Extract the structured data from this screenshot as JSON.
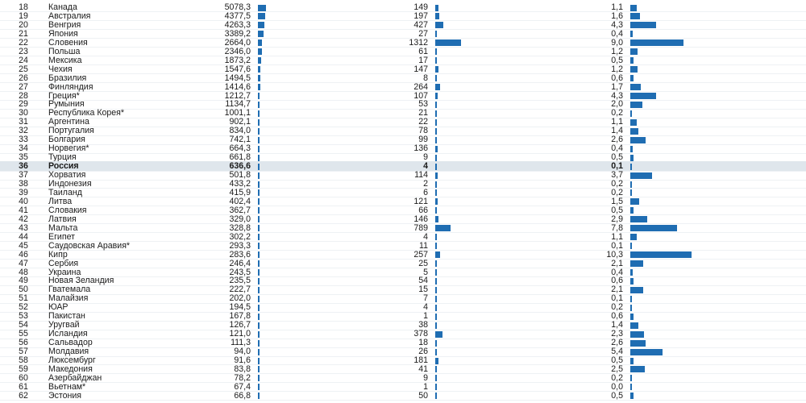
{
  "accent_color": "#1f6db2",
  "highlight_color": "#dfe6ec",
  "chart_data": {
    "type": "table",
    "highlighted_row": "Россия",
    "rows": [
      {
        "rank": "18",
        "country": "Канада",
        "v1": "5078,3",
        "v2": "149",
        "v3": "1,1",
        "n1": 5078.3,
        "n2": 149,
        "n3": 1.1
      },
      {
        "rank": "19",
        "country": "Австралия",
        "v1": "4377,5",
        "v2": "197",
        "v3": "1,6",
        "n1": 4377.5,
        "n2": 197,
        "n3": 1.6
      },
      {
        "rank": "20",
        "country": "Венгрия",
        "v1": "4263,3",
        "v2": "427",
        "v3": "4,3",
        "n1": 4263.3,
        "n2": 427,
        "n3": 4.3
      },
      {
        "rank": "21",
        "country": "Япония",
        "v1": "3389,2",
        "v2": "27",
        "v3": "0,4",
        "n1": 3389.2,
        "n2": 27,
        "n3": 0.4
      },
      {
        "rank": "22",
        "country": "Словения",
        "v1": "2664,0",
        "v2": "1312",
        "v3": "9,0",
        "n1": 2664.0,
        "n2": 1312,
        "n3": 9.0
      },
      {
        "rank": "23",
        "country": "Польша",
        "v1": "2346,0",
        "v2": "61",
        "v3": "1,2",
        "n1": 2346.0,
        "n2": 61,
        "n3": 1.2
      },
      {
        "rank": "24",
        "country": "Мексика",
        "v1": "1873,2",
        "v2": "17",
        "v3": "0,5",
        "n1": 1873.2,
        "n2": 17,
        "n3": 0.5
      },
      {
        "rank": "25",
        "country": "Чехия",
        "v1": "1547,6",
        "v2": "147",
        "v3": "1,2",
        "n1": 1547.6,
        "n2": 147,
        "n3": 1.2
      },
      {
        "rank": "26",
        "country": "Бразилия",
        "v1": "1494,5",
        "v2": "8",
        "v3": "0,6",
        "n1": 1494.5,
        "n2": 8,
        "n3": 0.6
      },
      {
        "rank": "27",
        "country": "Финляндия",
        "v1": "1414,6",
        "v2": "264",
        "v3": "1,7",
        "n1": 1414.6,
        "n2": 264,
        "n3": 1.7
      },
      {
        "rank": "28",
        "country": "Греция*",
        "v1": "1212,7",
        "v2": "107",
        "v3": "4,3",
        "n1": 1212.7,
        "n2": 107,
        "n3": 4.3
      },
      {
        "rank": "29",
        "country": "Румыния",
        "v1": "1134,7",
        "v2": "53",
        "v3": "2,0",
        "n1": 1134.7,
        "n2": 53,
        "n3": 2.0
      },
      {
        "rank": "30",
        "country": "Республика Корея*",
        "v1": "1001,1",
        "v2": "21",
        "v3": "0,2",
        "n1": 1001.1,
        "n2": 21,
        "n3": 0.2
      },
      {
        "rank": "31",
        "country": "Аргентина",
        "v1": "902,1",
        "v2": "22",
        "v3": "1,1",
        "n1": 902.1,
        "n2": 22,
        "n3": 1.1
      },
      {
        "rank": "32",
        "country": "Португалия",
        "v1": "834,0",
        "v2": "78",
        "v3": "1,4",
        "n1": 834.0,
        "n2": 78,
        "n3": 1.4
      },
      {
        "rank": "33",
        "country": "Болгария",
        "v1": "742,1",
        "v2": "99",
        "v3": "2,6",
        "n1": 742.1,
        "n2": 99,
        "n3": 2.6
      },
      {
        "rank": "34",
        "country": "Норвегия*",
        "v1": "664,3",
        "v2": "136",
        "v3": "0,4",
        "n1": 664.3,
        "n2": 136,
        "n3": 0.4
      },
      {
        "rank": "35",
        "country": "Турция",
        "v1": "661,8",
        "v2": "9",
        "v3": "0,5",
        "n1": 661.8,
        "n2": 9,
        "n3": 0.5
      },
      {
        "rank": "36",
        "country": "Россия",
        "v1": "636,6",
        "v2": "4",
        "v3": "0,1",
        "n1": 636.6,
        "n2": 4,
        "n3": 0.1
      },
      {
        "rank": "37",
        "country": "Хорватия",
        "v1": "501,8",
        "v2": "114",
        "v3": "3,7",
        "n1": 501.8,
        "n2": 114,
        "n3": 3.7
      },
      {
        "rank": "38",
        "country": "Индонезия",
        "v1": "433,2",
        "v2": "2",
        "v3": "0,2",
        "n1": 433.2,
        "n2": 2,
        "n3": 0.2
      },
      {
        "rank": "39",
        "country": "Таиланд",
        "v1": "415,9",
        "v2": "6",
        "v3": "0,2",
        "n1": 415.9,
        "n2": 6,
        "n3": 0.2
      },
      {
        "rank": "40",
        "country": "Литва",
        "v1": "402,4",
        "v2": "121",
        "v3": "1,5",
        "n1": 402.4,
        "n2": 121,
        "n3": 1.5
      },
      {
        "rank": "41",
        "country": "Словакия",
        "v1": "362,7",
        "v2": "66",
        "v3": "0,5",
        "n1": 362.7,
        "n2": 66,
        "n3": 0.5
      },
      {
        "rank": "42",
        "country": "Латвия",
        "v1": "329,0",
        "v2": "146",
        "v3": "2,9",
        "n1": 329.0,
        "n2": 146,
        "n3": 2.9
      },
      {
        "rank": "43",
        "country": "Мальта",
        "v1": "328,8",
        "v2": "789",
        "v3": "7,8",
        "n1": 328.8,
        "n2": 789,
        "n3": 7.8
      },
      {
        "rank": "44",
        "country": "Египет",
        "v1": "302,2",
        "v2": "4",
        "v3": "1,1",
        "n1": 302.2,
        "n2": 4,
        "n3": 1.1
      },
      {
        "rank": "45",
        "country": "Саудовская Аравия*",
        "v1": "293,3",
        "v2": "11",
        "v3": "0,1",
        "n1": 293.3,
        "n2": 11,
        "n3": 0.1
      },
      {
        "rank": "46",
        "country": "Кипр",
        "v1": "283,6",
        "v2": "257",
        "v3": "10,3",
        "n1": 283.6,
        "n2": 257,
        "n3": 10.3
      },
      {
        "rank": "47",
        "country": "Сербия",
        "v1": "246,4",
        "v2": "25",
        "v3": "2,1",
        "n1": 246.4,
        "n2": 25,
        "n3": 2.1
      },
      {
        "rank": "48",
        "country": "Украина",
        "v1": "243,5",
        "v2": "5",
        "v3": "0,4",
        "n1": 243.5,
        "n2": 5,
        "n3": 0.4
      },
      {
        "rank": "49",
        "country": "Новая Зеландия",
        "v1": "235,5",
        "v2": "54",
        "v3": "0,6",
        "n1": 235.5,
        "n2": 54,
        "n3": 0.6
      },
      {
        "rank": "50",
        "country": "Гватемала",
        "v1": "222,7",
        "v2": "15",
        "v3": "2,1",
        "n1": 222.7,
        "n2": 15,
        "n3": 2.1
      },
      {
        "rank": "51",
        "country": "Малайзия",
        "v1": "202,0",
        "v2": "7",
        "v3": "0,1",
        "n1": 202.0,
        "n2": 7,
        "n3": 0.1
      },
      {
        "rank": "52",
        "country": "ЮАР",
        "v1": "194,5",
        "v2": "4",
        "v3": "0,2",
        "n1": 194.5,
        "n2": 4,
        "n3": 0.2
      },
      {
        "rank": "53",
        "country": "Пакистан",
        "v1": "167,8",
        "v2": "1",
        "v3": "0,6",
        "n1": 167.8,
        "n2": 1,
        "n3": 0.6
      },
      {
        "rank": "54",
        "country": "Уругвай",
        "v1": "126,7",
        "v2": "38",
        "v3": "1,4",
        "n1": 126.7,
        "n2": 38,
        "n3": 1.4
      },
      {
        "rank": "55",
        "country": "Исландия",
        "v1": "121,0",
        "v2": "378",
        "v3": "2,3",
        "n1": 121.0,
        "n2": 378,
        "n3": 2.3
      },
      {
        "rank": "56",
        "country": "Сальвадор",
        "v1": "111,3",
        "v2": "18",
        "v3": "2,6",
        "n1": 111.3,
        "n2": 18,
        "n3": 2.6
      },
      {
        "rank": "57",
        "country": "Молдавия",
        "v1": "94,0",
        "v2": "26",
        "v3": "5,4",
        "n1": 94.0,
        "n2": 26,
        "n3": 5.4
      },
      {
        "rank": "58",
        "country": "Люксембург",
        "v1": "91,6",
        "v2": "181",
        "v3": "0,5",
        "n1": 91.6,
        "n2": 181,
        "n3": 0.5
      },
      {
        "rank": "59",
        "country": "Македония",
        "v1": "83,8",
        "v2": "41",
        "v3": "2,5",
        "n1": 83.8,
        "n2": 41,
        "n3": 2.5
      },
      {
        "rank": "60",
        "country": "Азербайджан",
        "v1": "78,2",
        "v2": "9",
        "v3": "0,2",
        "n1": 78.2,
        "n2": 9,
        "n3": 0.2
      },
      {
        "rank": "61",
        "country": "Вьетнам*",
        "v1": "67,4",
        "v2": "1",
        "v3": "0,0",
        "n1": 67.4,
        "n2": 1,
        "n3": 0.0
      },
      {
        "rank": "62",
        "country": "Эстония",
        "v1": "66,8",
        "v2": "50",
        "v3": "0,5",
        "n1": 66.8,
        "n2": 50,
        "n3": 0.5
      }
    ]
  }
}
